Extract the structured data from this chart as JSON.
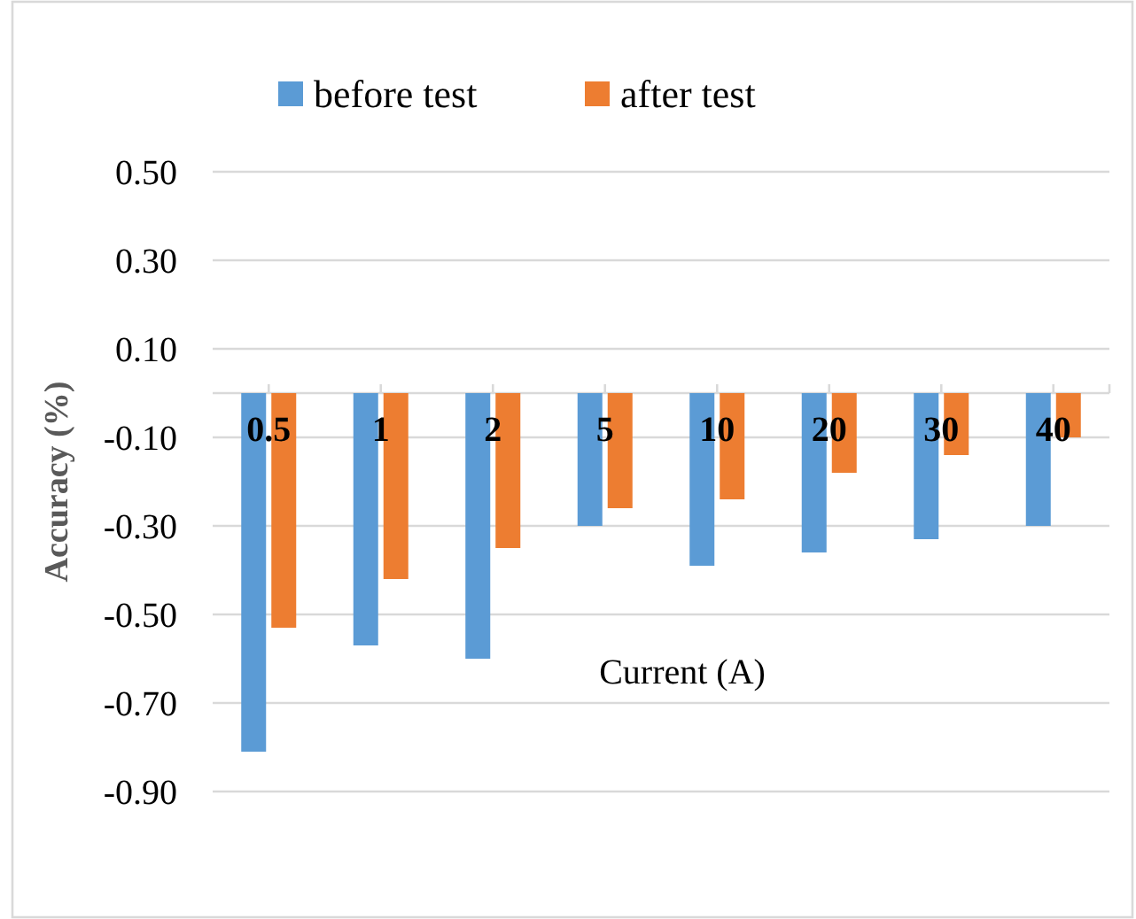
{
  "chart_data": {
    "type": "bar",
    "xlabel": "Current (A)",
    "ylabel": "Accuracy (%)",
    "categories": [
      "0.5",
      "1",
      "2",
      "5",
      "10",
      "20",
      "30",
      "40"
    ],
    "series": [
      {
        "name": "before test",
        "color": "#5b9bd5",
        "values": [
          -0.81,
          -0.57,
          -0.6,
          -0.3,
          -0.39,
          -0.36,
          -0.33,
          -0.3
        ]
      },
      {
        "name": "after test",
        "color": "#ed7d31",
        "values": [
          -0.53,
          -0.42,
          -0.35,
          -0.26,
          -0.24,
          -0.18,
          -0.14,
          -0.1
        ]
      }
    ],
    "ylim": [
      -0.9,
      0.5
    ],
    "yticks": [
      {
        "value": 0.5,
        "label": "0.50"
      },
      {
        "value": 0.3,
        "label": "0.30"
      },
      {
        "value": 0.1,
        "label": "0.10"
      },
      {
        "value": -0.1,
        "label": "-0.10"
      },
      {
        "value": -0.3,
        "label": "-0.30"
      },
      {
        "value": -0.5,
        "label": "-0.50"
      },
      {
        "value": -0.7,
        "label": "-0.70"
      },
      {
        "value": -0.9,
        "label": "-0.90"
      }
    ],
    "grid": "y",
    "legend": "top"
  }
}
